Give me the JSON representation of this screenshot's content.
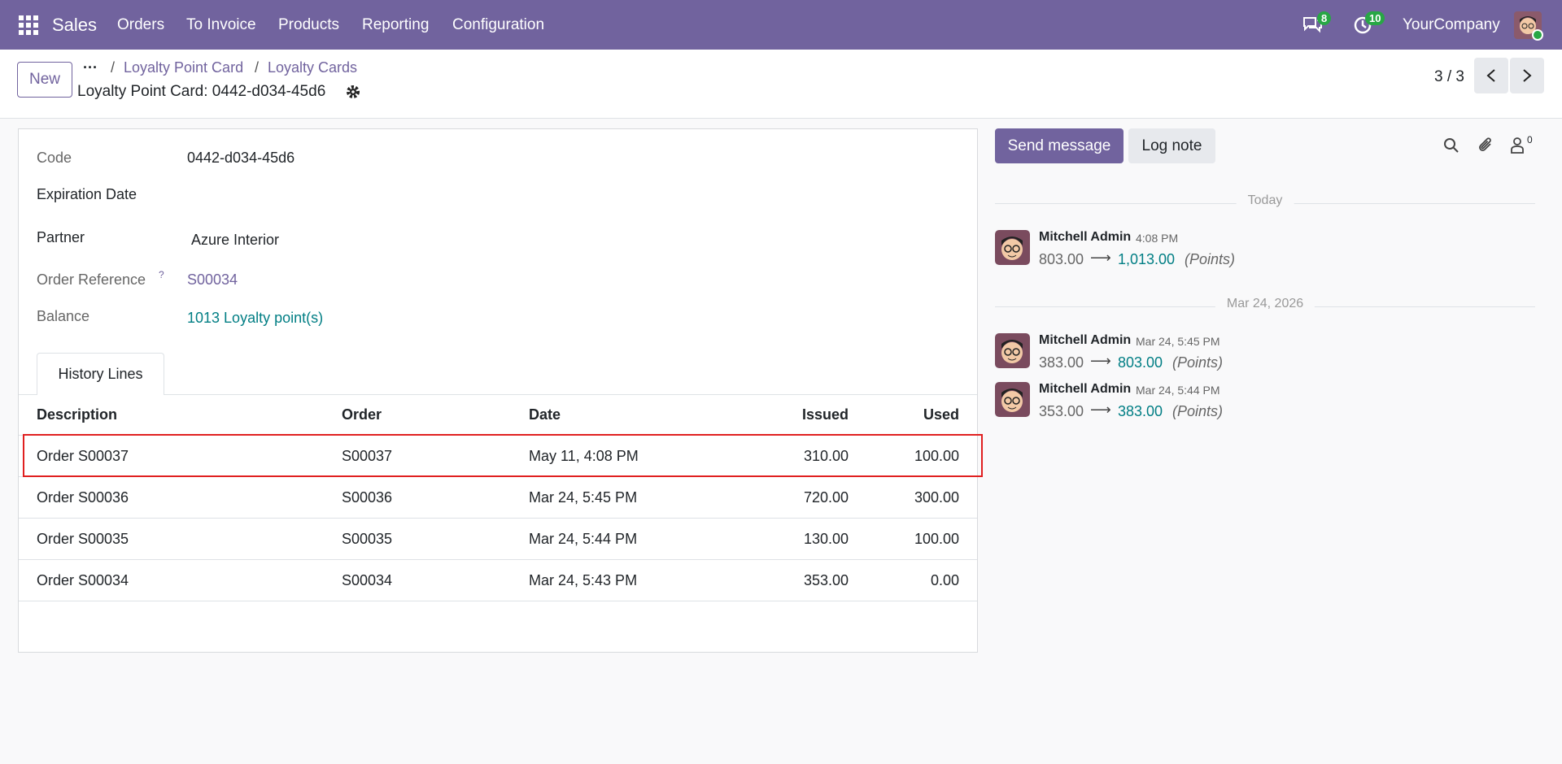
{
  "navbar": {
    "app": "Sales",
    "menu": [
      "Orders",
      "To Invoice",
      "Products",
      "Reporting",
      "Configuration"
    ],
    "messages_badge": "8",
    "activities_badge": "10",
    "company": "YourCompany"
  },
  "control_panel": {
    "new_button": "New",
    "breadcrumbs": [
      "Loyalty Point Card",
      "Loyalty Cards"
    ],
    "title": "Loyalty Point Card: 0442-d034-45d6",
    "pager": "3 / 3"
  },
  "form": {
    "fields": [
      {
        "label": "Code",
        "value": "0442-d034-45d6"
      },
      {
        "label": "Expiration Date"
      },
      {
        "label": "Partner",
        "value": "Azure Interior"
      },
      {
        "label": "Order Reference",
        "help": "?",
        "value": "S00034"
      },
      {
        "label": "Balance",
        "value": "1013 Loyalty point(s)"
      }
    ],
    "tab": "History Lines",
    "table": {
      "columns": [
        "Description",
        "Order",
        "Date",
        "Issued",
        "Used"
      ],
      "rows": [
        [
          "Order S00037",
          "S00037",
          "May 11, 4:08 PM",
          "310.00",
          "100.00"
        ],
        [
          "Order S00036",
          "S00036",
          "Mar 24, 5:45 PM",
          "720.00",
          "300.00"
        ],
        [
          "Order S00035",
          "S00035",
          "Mar 24, 5:44 PM",
          "130.00",
          "100.00"
        ],
        [
          "Order S00034",
          "S00034",
          "Mar 24, 5:43 PM",
          "353.00",
          "0.00"
        ]
      ]
    }
  },
  "chatter": {
    "send_message": "Send message",
    "log_note": "Log note",
    "followers": "0",
    "groups": [
      {
        "date": "Today",
        "messages": [
          {
            "author": "Mitchell Admin",
            "time": "4:08 PM",
            "old": "803.00",
            "new": "1,013.00",
            "field": "(Points)"
          }
        ]
      },
      {
        "date": "Mar 24, 2026",
        "messages": [
          {
            "author": "Mitchell Admin",
            "time": "Mar 24, 5:45 PM",
            "old": "383.00",
            "new": "803.00",
            "field": "(Points)"
          },
          {
            "author": "Mitchell Admin",
            "time": "Mar 24, 5:44 PM",
            "old": "353.00",
            "new": "383.00",
            "field": "(Points)"
          }
        ]
      }
    ]
  }
}
